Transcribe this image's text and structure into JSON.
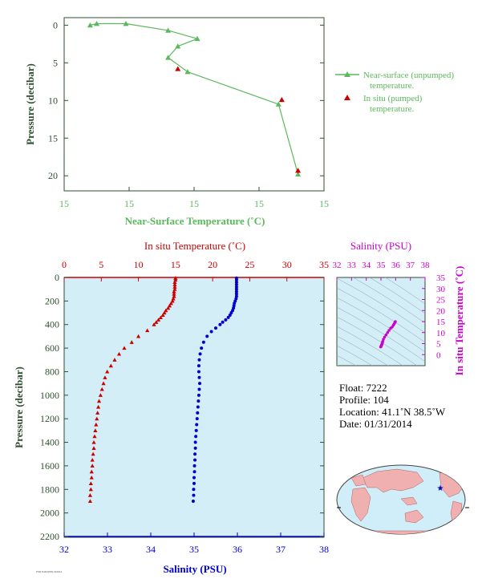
{
  "colors": {
    "green": "#5cb85c",
    "red": "#cc0000",
    "blue": "#0000cc",
    "magenta": "#cc00cc",
    "panel_fill": "#d4eef8",
    "axis_dark": "#2f4f2f",
    "land": "#f0b0b0",
    "ocean": "#cfeef9"
  },
  "chart_data": [
    {
      "type": "line",
      "xlabel": "Near-Surface Temperature (˚C)",
      "ylabel": "Pressure (decibar)",
      "xticks": [
        "15",
        "15",
        "15",
        "15",
        "15"
      ],
      "xlim": [
        0,
        4
      ],
      "ylim": [
        22,
        -1
      ],
      "yticks": [
        "0",
        "5",
        "10",
        "15",
        "20"
      ],
      "legend": {
        "placement": "right",
        "items": [
          {
            "label1": "Near-surface (unpumped)",
            "label2": "temperature."
          },
          {
            "label1": "In situ (pumped)",
            "label2": "temperature."
          }
        ]
      },
      "series": [
        {
          "name": "Near-surface (unpumped) temperature.",
          "x": [
            0.4,
            0.5,
            0.95,
            1.6,
            2.05,
            1.75,
            1.6,
            1.9,
            3.3,
            3.6
          ],
          "y": [
            0.0,
            -0.2,
            -0.2,
            0.7,
            1.8,
            2.8,
            4.3,
            6.2,
            10.5,
            19.8
          ]
        },
        {
          "name": "In situ (pumped) temperature.",
          "x": [
            1.75,
            3.35,
            3.6
          ],
          "y": [
            5.8,
            9.9,
            19.3
          ]
        }
      ]
    },
    {
      "type": "scatter",
      "top_xlabel": "In situ Temperature (˚C)",
      "bottom_xlabel": "Salinity (PSU)",
      "ylabel": "Pressure (decibar)",
      "temp_xlim": [
        0,
        35
      ],
      "temp_xticks": [
        "0",
        "5",
        "10",
        "15",
        "20",
        "25",
        "30",
        "35"
      ],
      "sal_xlim": [
        32,
        38
      ],
      "sal_xticks": [
        "32",
        "33",
        "34",
        "35",
        "36",
        "37",
        "38"
      ],
      "ylim": [
        2200,
        0
      ],
      "yticks": [
        "0",
        "200",
        "400",
        "600",
        "800",
        "1000",
        "1200",
        "1400",
        "1600",
        "1800",
        "2000",
        "2200"
      ],
      "series": [
        {
          "name": "In situ Temperature",
          "pressure": [
            5,
            20,
            40,
            60,
            80,
            100,
            120,
            140,
            160,
            180,
            200,
            220,
            240,
            260,
            280,
            300,
            320,
            340,
            360,
            380,
            400,
            450,
            500,
            550,
            600,
            650,
            700,
            750,
            800,
            850,
            900,
            950,
            1000,
            1050,
            1100,
            1150,
            1200,
            1250,
            1300,
            1350,
            1400,
            1450,
            1500,
            1550,
            1600,
            1650,
            1700,
            1750,
            1800,
            1850,
            1900
          ],
          "value": [
            15.0,
            15.0,
            14.9,
            14.9,
            14.9,
            14.9,
            14.8,
            14.8,
            14.8,
            14.7,
            14.6,
            14.4,
            14.2,
            14.0,
            13.7,
            13.5,
            13.3,
            13.0,
            12.7,
            12.4,
            12.1,
            11.2,
            10.0,
            9.1,
            8.1,
            7.4,
            6.8,
            6.3,
            5.8,
            5.5,
            5.3,
            5.1,
            4.9,
            4.7,
            4.6,
            4.5,
            4.4,
            4.3,
            4.2,
            4.1,
            4.0,
            4.0,
            3.9,
            3.8,
            3.8,
            3.7,
            3.7,
            3.6,
            3.6,
            3.5,
            3.5
          ]
        },
        {
          "name": "Salinity",
          "pressure": [
            5,
            20,
            40,
            60,
            80,
            100,
            120,
            140,
            160,
            180,
            200,
            220,
            240,
            260,
            280,
            300,
            320,
            340,
            360,
            380,
            400,
            430,
            460,
            500,
            550,
            600,
            650,
            700,
            750,
            800,
            850,
            900,
            950,
            1000,
            1050,
            1100,
            1150,
            1200,
            1250,
            1300,
            1350,
            1400,
            1450,
            1500,
            1550,
            1600,
            1650,
            1700,
            1750,
            1800,
            1850,
            1900
          ],
          "value": [
            35.98,
            35.98,
            35.98,
            35.98,
            35.98,
            35.98,
            35.98,
            35.98,
            35.98,
            35.97,
            35.95,
            35.93,
            35.92,
            35.91,
            35.89,
            35.86,
            35.83,
            35.79,
            35.73,
            35.66,
            35.6,
            35.5,
            35.4,
            35.3,
            35.22,
            35.17,
            35.14,
            35.12,
            35.11,
            35.11,
            35.12,
            35.13,
            35.12,
            35.11,
            35.1,
            35.09,
            35.08,
            35.07,
            35.06,
            35.05,
            35.04,
            35.03,
            35.03,
            35.02,
            35.02,
            35.01,
            35.01,
            35.0,
            35.0,
            34.99,
            34.99,
            34.98
          ]
        }
      ]
    },
    {
      "type": "scatter",
      "title": "Salinity (PSU)",
      "ylabel": "In situ Temperature (˚C)",
      "xlim": [
        32,
        38
      ],
      "xticks": [
        "32",
        "33",
        "34",
        "35",
        "36",
        "37",
        "38"
      ],
      "ylim": [
        -5,
        35
      ],
      "yticks": [
        "0",
        "5",
        "10",
        "15",
        "20",
        "25",
        "30",
        "35"
      ],
      "series": [
        {
          "name": "T-S",
          "x": [
            35.98,
            35.97,
            35.95,
            35.9,
            35.84,
            35.76,
            35.66,
            35.55,
            35.45,
            35.35,
            35.25,
            35.17,
            35.12,
            35.1,
            35.08,
            35.06,
            35.04,
            35.02,
            35.0,
            34.98
          ],
          "y": [
            15.0,
            14.9,
            14.6,
            14.0,
            13.3,
            12.5,
            12.0,
            11.0,
            10.0,
            9.0,
            8.0,
            7.0,
            6.0,
            5.5,
            5.0,
            4.6,
            4.3,
            4.0,
            3.7,
            3.5
          ]
        }
      ]
    }
  ],
  "info": {
    "float": "Float:  7222",
    "profile": "Profile:  104",
    "location": "Location:  41.1˚N  38.5˚W",
    "date": "Date:  01/31/2014"
  },
  "map": {
    "marker": "float-position-star"
  },
  "footer": "PSD DARAPPE 010014"
}
